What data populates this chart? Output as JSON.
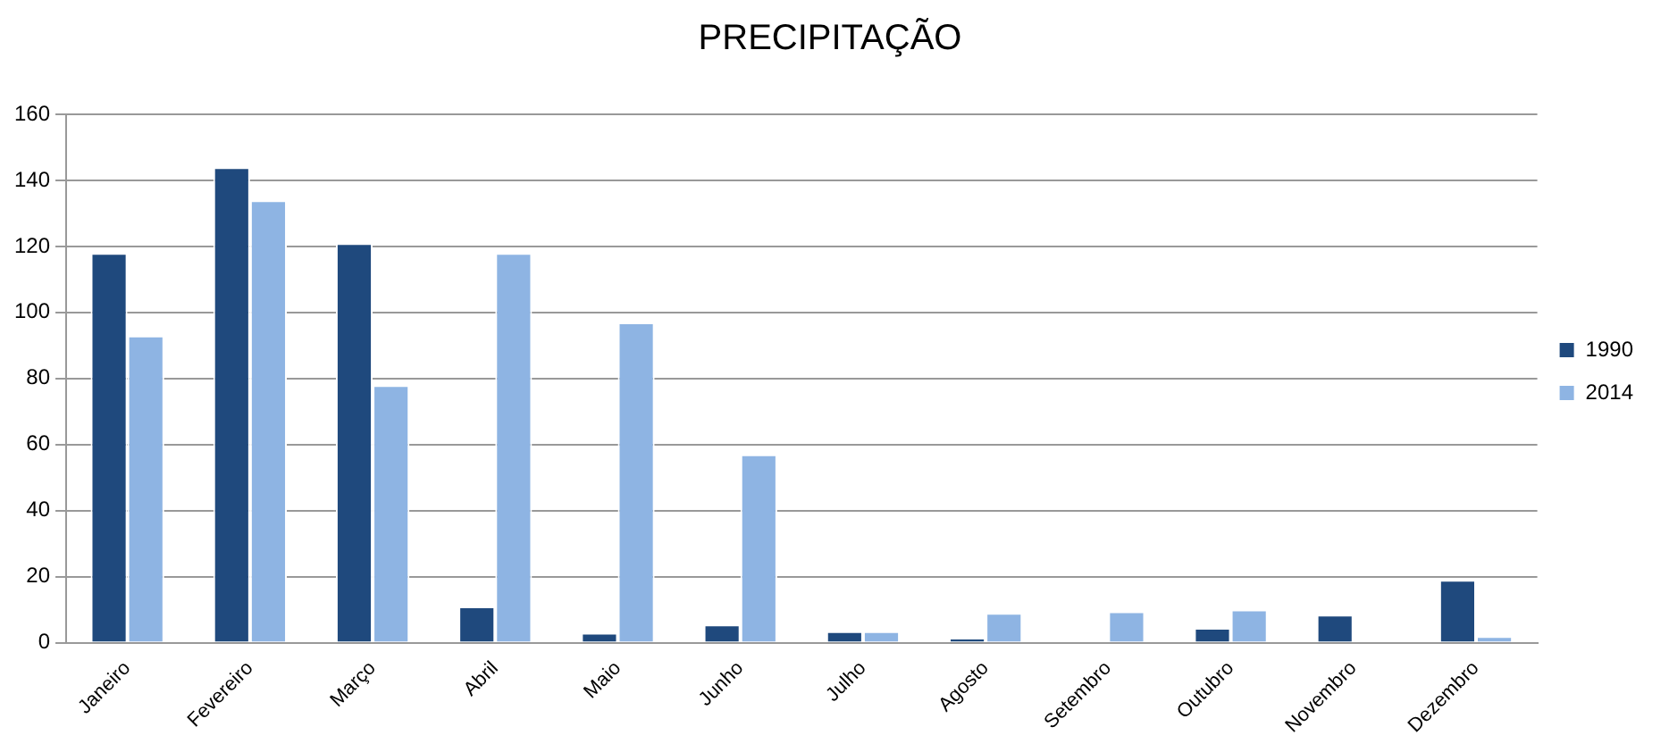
{
  "chart_data": {
    "type": "bar",
    "title": "PRECIPITAÇÃO",
    "categories": [
      "Janeiro",
      "Fevereiro",
      "Março",
      "Abril",
      "Maio",
      "Junho",
      "Julho",
      "Agosto",
      "Setembro",
      "Outubro",
      "Novembro",
      "Dezembro"
    ],
    "series": [
      {
        "name": "1990",
        "color": "#1f497d",
        "values": [
          118,
          144,
          121,
          11,
          3,
          5.5,
          3.5,
          1.5,
          null,
          4.5,
          8.5,
          19
        ]
      },
      {
        "name": "2014",
        "color": "#8eb4e3",
        "values": [
          93,
          134,
          78,
          118,
          97,
          57,
          3.5,
          9,
          9.5,
          10,
          null,
          2
        ]
      }
    ],
    "ylim": [
      0,
      160
    ],
    "yticks": [
      0,
      20,
      40,
      60,
      80,
      100,
      120,
      140,
      160
    ],
    "grid": "y",
    "legend": "right"
  }
}
